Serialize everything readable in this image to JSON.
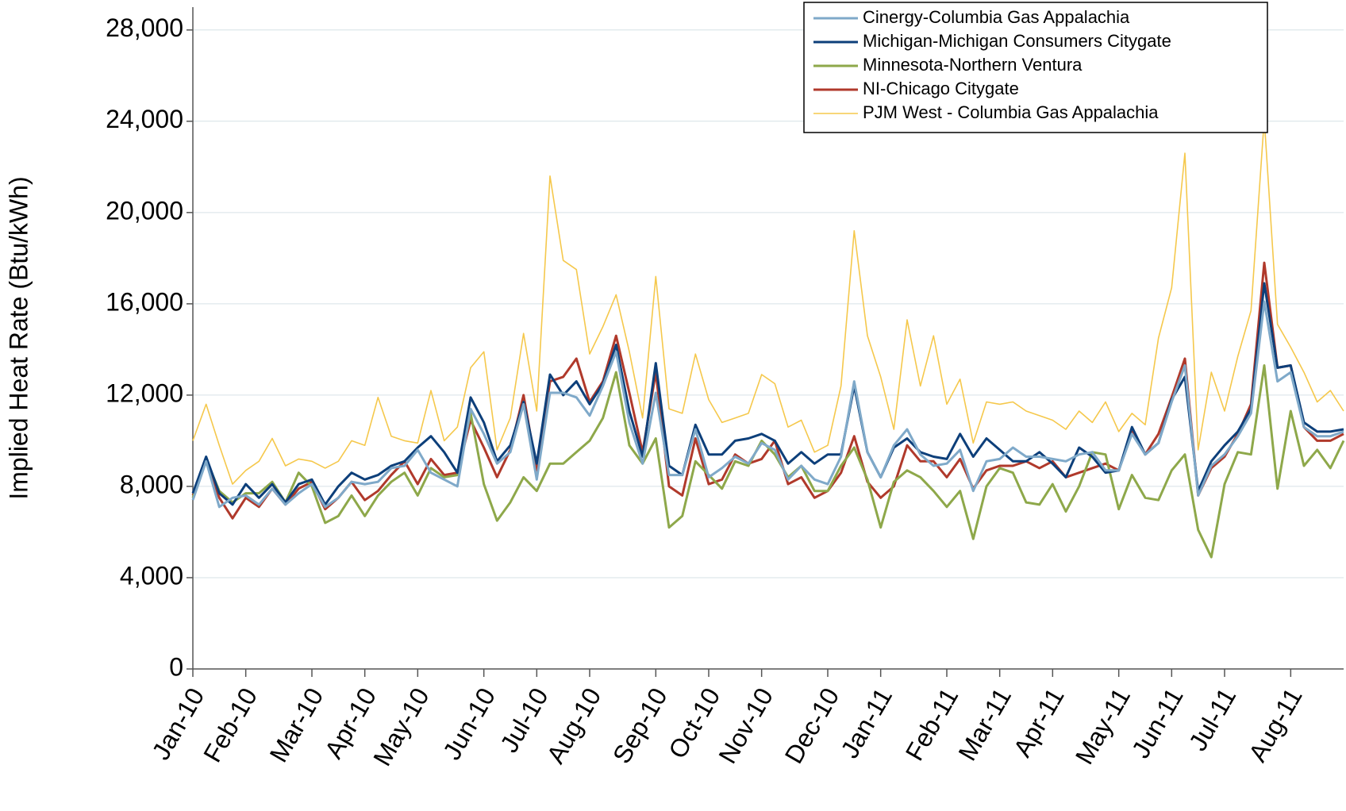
{
  "chart_data": {
    "type": "line",
    "y_label": "Implied Heat Rate (Btu/kWh)",
    "categories": [
      "Jan-10",
      null,
      null,
      null,
      "Feb-10",
      null,
      null,
      null,
      null,
      "Mar-10",
      null,
      null,
      null,
      "Apr-10",
      null,
      null,
      null,
      "May-10",
      null,
      null,
      null,
      null,
      "Jun-10",
      null,
      null,
      null,
      "Jul-10",
      null,
      null,
      null,
      "Aug-10",
      null,
      null,
      null,
      null,
      "Sep-10",
      null,
      null,
      null,
      "Oct-10",
      null,
      null,
      null,
      "Nov-10",
      null,
      null,
      null,
      null,
      "Dec-10",
      null,
      null,
      null,
      "Jan-11",
      null,
      null,
      null,
      null,
      "Feb-11",
      null,
      null,
      null,
      "Mar-11",
      null,
      null,
      null,
      "Apr-11",
      null,
      null,
      null,
      null,
      "May-11",
      null,
      null,
      null,
      "Jun-11",
      null,
      null,
      null,
      "Jul-11",
      null,
      null,
      null,
      null,
      "Aug-11",
      null,
      null,
      null,
      null
    ],
    "series": [
      {
        "name": "Cinergy-Columbia Gas Appalachia",
        "color": "#7fa9c9",
        "values": [
          7400,
          9100,
          7100,
          7500,
          7600,
          7200,
          7900,
          7200,
          7700,
          8100,
          7100,
          7500,
          8200,
          8100,
          8200,
          8800,
          8900,
          9600,
          8600,
          8300,
          8000,
          11400,
          10300,
          9000,
          9500,
          11600,
          8300,
          12100,
          12100,
          11900,
          11100,
          12400,
          13900,
          10800,
          9000,
          12100,
          8500,
          8500,
          10500,
          8400,
          8800,
          9300,
          9000,
          9900,
          9600,
          8300,
          8900,
          8300,
          8100,
          9300,
          12600,
          9500,
          8400,
          9800,
          10500,
          9400,
          8900,
          9000,
          9600,
          7800,
          9100,
          9200,
          9700,
          9300,
          9300,
          9200,
          9100,
          9400,
          9500,
          8700,
          8700,
          10300,
          9400,
          9900,
          11700,
          13300,
          7600,
          8900,
          9400,
          10200,
          11200,
          16100,
          12600,
          13000,
          10600,
          10200,
          10200,
          10400
        ]
      },
      {
        "name": "Michigan-Michigan Consumers Citygate",
        "color": "#0d3f7a",
        "values": [
          7700,
          9300,
          7700,
          7200,
          8100,
          7500,
          8100,
          7300,
          8100,
          8300,
          7200,
          8000,
          8600,
          8300,
          8500,
          8900,
          9100,
          9700,
          10200,
          9500,
          8600,
          11900,
          10800,
          9100,
          9800,
          11700,
          9000,
          12900,
          12000,
          12600,
          11600,
          12500,
          14200,
          11300,
          9300,
          13400,
          8900,
          8500,
          10700,
          9400,
          9400,
          10000,
          10100,
          10300,
          10000,
          9000,
          9500,
          9000,
          9400,
          9400,
          12400,
          9500,
          8400,
          9700,
          10100,
          9500,
          9300,
          9200,
          10300,
          9300,
          10100,
          9600,
          9100,
          9100,
          9500,
          9000,
          8400,
          9700,
          9300,
          8600,
          8700,
          10600,
          9400,
          9900,
          11800,
          12800,
          7800,
          9100,
          9800,
          10400,
          11400,
          16900,
          13200,
          13300,
          10800,
          10400,
          10400,
          10500
        ]
      },
      {
        "name": "Minnesota-Northern Ventura",
        "color": "#8ea84a",
        "values": [
          7500,
          9200,
          7800,
          7300,
          7700,
          7700,
          8200,
          7300,
          8600,
          8000,
          6400,
          6700,
          7600,
          6700,
          7600,
          8200,
          8600,
          7600,
          8800,
          8400,
          8500,
          11200,
          8100,
          6500,
          7300,
          8400,
          7800,
          9000,
          9000,
          9500,
          10000,
          11000,
          13000,
          9800,
          9000,
          10100,
          6200,
          6700,
          9100,
          8500,
          7900,
          9100,
          8900,
          10000,
          9400,
          8400,
          8900,
          7800,
          7800,
          8900,
          9700,
          8300,
          6200,
          8200,
          8700,
          8400,
          7800,
          7100,
          7800,
          5700,
          8000,
          8800,
          8600,
          7300,
          7200,
          8100,
          6900,
          8000,
          9500,
          9400,
          7000,
          8500,
          7500,
          7400,
          8700,
          9400,
          6100,
          4900,
          8100,
          9500,
          9400,
          13300,
          7900,
          11300,
          8900,
          9600,
          8800,
          10000
        ]
      },
      {
        "name": "NI-Chicago Citygate",
        "color": "#b0392b",
        "values": [
          7600,
          9100,
          7500,
          6600,
          7500,
          7100,
          7900,
          7200,
          7900,
          8200,
          7000,
          7500,
          8200,
          7400,
          7800,
          8500,
          9100,
          8100,
          9200,
          8500,
          8600,
          10900,
          9700,
          8400,
          9600,
          12000,
          8700,
          12600,
          12800,
          13600,
          11700,
          12600,
          14600,
          12100,
          9500,
          13000,
          8000,
          7600,
          10100,
          8100,
          8300,
          9400,
          9000,
          9200,
          10000,
          8100,
          8400,
          7500,
          7800,
          8600,
          10200,
          8200,
          7500,
          8000,
          9800,
          9100,
          9100,
          8400,
          9200,
          7900,
          8700,
          8900,
          8900,
          9100,
          8800,
          9100,
          8400,
          8600,
          8800,
          9000,
          8700,
          10400,
          9400,
          10300,
          11900,
          13600,
          7600,
          8800,
          9300,
          10300,
          11600,
          17800,
          13200,
          13300,
          10600,
          10000,
          10000,
          10300
        ]
      },
      {
        "name": "PJM West - Columbia Gas Appalachia",
        "color": "#f5c84c",
        "values": [
          10000,
          11600,
          9800,
          8100,
          8700,
          9100,
          10100,
          8900,
          9200,
          9100,
          8800,
          9100,
          10000,
          9800,
          11900,
          10200,
          10000,
          9900,
          12200,
          10000,
          10600,
          13200,
          13900,
          9600,
          11000,
          14700,
          11300,
          21600,
          17900,
          17500,
          13800,
          15000,
          16400,
          13900,
          11000,
          17200,
          11400,
          11200,
          13800,
          11800,
          10800,
          11000,
          11200,
          12900,
          12500,
          10600,
          10900,
          9500,
          9800,
          12400,
          19200,
          14600,
          12800,
          10500,
          15300,
          12400,
          14600,
          11600,
          12700,
          9900,
          11700,
          11600,
          11700,
          11300,
          11100,
          10900,
          10500,
          11300,
          10800,
          11700,
          10400,
          11200,
          10700,
          14500,
          16700,
          22600,
          9600,
          13000,
          11300,
          13700,
          15700,
          24100,
          15100,
          14100,
          13000,
          11700,
          12200,
          11300
        ]
      }
    ],
    "ylim": [
      0,
      29000
    ],
    "yticks": [
      0,
      {
        "value": 4000,
        "label": "4,000"
      },
      {
        "value": 8000,
        "label": "8,000"
      },
      {
        "value": 12000,
        "label": "12,000"
      },
      {
        "value": 16000,
        "label": "16,000"
      },
      {
        "value": 20000,
        "label": "20,000"
      },
      {
        "value": 24000,
        "label": "24,000"
      },
      {
        "value": 28000,
        "label": "28,000"
      }
    ],
    "grid": true,
    "legend": "upper right"
  }
}
